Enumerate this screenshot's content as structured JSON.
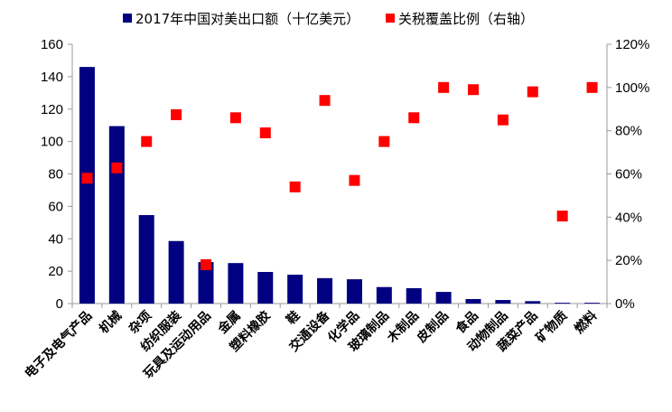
{
  "chart_data": {
    "type": "bar+scatter",
    "categories": [
      "电子及电气产品",
      "机械",
      "杂项",
      "纺织服装",
      "玩具及运动用品",
      "金属",
      "塑料橡胶",
      "鞋",
      "交通设备",
      "化学品",
      "玻璃制品",
      "木制品",
      "皮制品",
      "食品",
      "动物制品",
      "蔬菜产品",
      "矿物质",
      "燃料"
    ],
    "series": [
      {
        "name": "2017年中国对美出口额（十亿美元）",
        "type": "bar",
        "axis": "left",
        "color": "#000080",
        "values": [
          146,
          109.5,
          54.6,
          38.6,
          25.6,
          25,
          19.5,
          17.8,
          15.7,
          15,
          10.2,
          9.5,
          7.2,
          2.8,
          2.2,
          1.5,
          0.5,
          0.5
        ]
      },
      {
        "name": "关税覆盖比例（右轴）",
        "type": "scatter",
        "axis": "right",
        "color": "#ff0000",
        "marker": "square",
        "values": [
          58,
          62.8,
          75,
          87.4,
          18,
          86,
          79,
          54,
          94,
          57,
          75,
          86,
          100,
          99,
          85,
          98,
          40.5,
          100
        ]
      }
    ],
    "left_axis": {
      "ylim": [
        0,
        160
      ],
      "ticks": [
        "0",
        "20",
        "40",
        "60",
        "80",
        "100",
        "120",
        "140",
        "160"
      ]
    },
    "right_axis": {
      "ylim": [
        0,
        120
      ],
      "ticks": [
        "0%",
        "20%",
        "40%",
        "60%",
        "80%",
        "100%",
        "120%"
      ]
    },
    "grid": false,
    "legend_position": "top"
  }
}
